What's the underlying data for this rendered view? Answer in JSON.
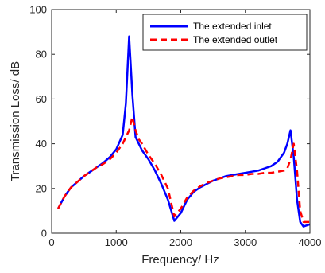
{
  "chart_data": {
    "type": "line",
    "xlabel": "Frequency/ Hz",
    "ylabel": "Transmission Loss/ dB",
    "xlim": [
      0,
      4000
    ],
    "ylim": [
      0,
      100
    ],
    "xticks": [
      0,
      1000,
      2000,
      3000,
      4000
    ],
    "yticks": [
      0,
      20,
      40,
      60,
      80,
      100
    ],
    "grid": false,
    "legend_position": "top-right",
    "series": [
      {
        "name": "The extended inlet",
        "color": "#0000ff",
        "line_style": "solid",
        "x": [
          100,
          200,
          300,
          400,
          500,
          600,
          700,
          800,
          900,
          1000,
          1100,
          1150,
          1200,
          1250,
          1300,
          1400,
          1500,
          1600,
          1700,
          1800,
          1900,
          2000,
          2100,
          2200,
          2300,
          2400,
          2500,
          2600,
          2700,
          2800,
          2900,
          3000,
          3100,
          3200,
          3300,
          3400,
          3500,
          3600,
          3650,
          3700,
          3750,
          3800,
          3850,
          3900,
          4000
        ],
        "y": [
          11,
          16.5,
          20.5,
          23,
          25.5,
          27.5,
          29.5,
          31.5,
          34,
          37.5,
          44,
          58,
          88,
          62,
          43,
          37,
          33,
          28,
          22,
          15,
          5.5,
          9,
          15,
          18.5,
          20.5,
          22,
          23.5,
          24.5,
          25.5,
          26,
          26.5,
          27,
          27.5,
          28,
          29,
          30,
          32,
          36,
          40,
          46,
          34,
          15,
          5,
          3,
          4
        ]
      },
      {
        "name": "The extended outlet",
        "color": "#ff0000",
        "line_style": "dashed",
        "x": [
          100,
          200,
          300,
          400,
          500,
          600,
          700,
          800,
          900,
          1000,
          1100,
          1200,
          1250,
          1300,
          1350,
          1400,
          1500,
          1600,
          1700,
          1800,
          1900,
          2000,
          2100,
          2200,
          2300,
          2400,
          2500,
          2600,
          2700,
          2800,
          2900,
          3000,
          3100,
          3200,
          3300,
          3400,
          3500,
          3600,
          3650,
          3700,
          3750,
          3800,
          3850,
          3900,
          4000
        ],
        "y": [
          11,
          16.5,
          20.5,
          23,
          25.5,
          27.5,
          29.5,
          31,
          33,
          36,
          40,
          46,
          52,
          46,
          42,
          40,
          35,
          31,
          26,
          20,
          7.5,
          11,
          16,
          19,
          21,
          22.5,
          23.5,
          24.5,
          25,
          25.5,
          26,
          26,
          26.5,
          26.5,
          27,
          27,
          27.5,
          28,
          29,
          33,
          40,
          28,
          10,
          5,
          5
        ]
      }
    ]
  }
}
